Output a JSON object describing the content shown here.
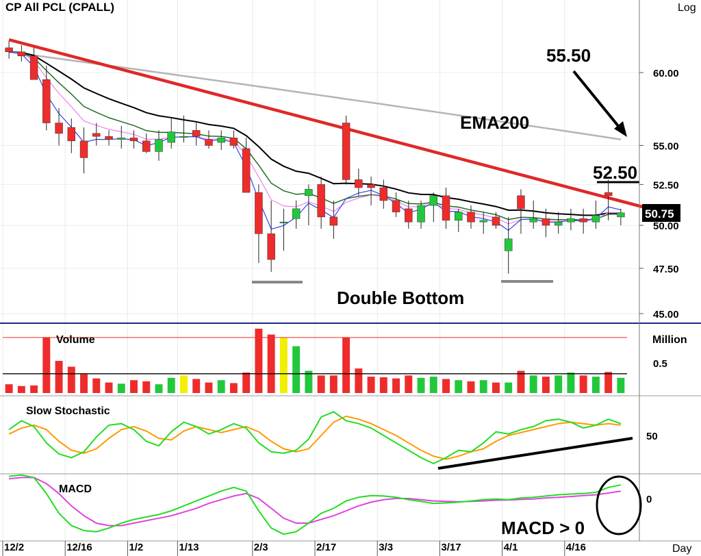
{
  "title": "CP  All  PCL  (CPALL)",
  "scale_label": "Log",
  "x_axis_label": "Day",
  "date_labels": [
    "12/2",
    "12/16",
    "1/2",
    "1/13",
    "2/3",
    "2/17",
    "3/3",
    "3/17",
    "4/1",
    "4/16"
  ],
  "annotations": {
    "target_high": "55.50",
    "ema_label": "EMA200",
    "resistance": "52.50",
    "last_price": "50.75",
    "pattern": "Double Bottom",
    "macd_note": "MACD > 0"
  },
  "colors": {
    "up": "#22c83c",
    "down": "#ee2c2c",
    "neutral": "#f0f000",
    "trendline": "#e02828",
    "ema200": "#b4b4b4",
    "ma_long": "#000000",
    "ma_mid": "#1f6b1f",
    "ma_short": "#ee82ee",
    "ma_fast": "#3344ee",
    "stoch_k": "#22dd22",
    "stoch_d": "#ff9900",
    "macd_line": "#22dd22",
    "macd_signal": "#dd44dd",
    "divider": "#1a2a8a"
  },
  "panels": {
    "price": {
      "ticks": [
        "60.00",
        "55.00",
        "52.50",
        "50.00",
        "47.50",
        "45.00"
      ]
    },
    "volume": {
      "title": "Volume",
      "unit": "Million",
      "ticks": [
        "0.5"
      ]
    },
    "stochastic": {
      "title": "Slow  Stochastic",
      "ticks": [
        "50"
      ]
    },
    "macd": {
      "title": "MACD",
      "ticks": [
        "0"
      ]
    }
  },
  "chart_data": {
    "type": "candlestick",
    "symbol": "CPALL",
    "scale": "log",
    "ylim": [
      44.5,
      63
    ],
    "x": [
      "12/2",
      "12/4",
      "12/6",
      "12/10",
      "12/12",
      "12/16",
      "12/18",
      "12/20",
      "12/24",
      "12/27",
      "1/2",
      "1/6",
      "1/8",
      "1/10",
      "1/13",
      "1/15",
      "1/20",
      "1/22",
      "1/24",
      "1/29",
      "2/3",
      "2/5",
      "2/7",
      "2/11",
      "2/13",
      "2/17",
      "2/19",
      "2/21",
      "2/25",
      "2/27",
      "3/3",
      "3/5",
      "3/7",
      "3/11",
      "3/13",
      "3/17",
      "3/19",
      "3/21",
      "3/25",
      "3/27",
      "4/1",
      "4/3",
      "4/7",
      "4/9",
      "4/11",
      "4/16",
      "4/18",
      "4/22",
      "4/24",
      "4/28"
    ],
    "open": [
      61.8,
      61.5,
      61.2,
      59.5,
      56.5,
      56.2,
      55.3,
      55.8,
      55.6,
      55.4,
      55.5,
      55.3,
      54.6,
      55.2,
      55.6,
      56.0,
      55.4,
      55.2,
      55.5,
      54.8,
      52.0,
      49.5,
      50.2,
      50.4,
      51.8,
      52.5,
      50.5,
      56.5,
      52.8,
      52.5,
      52.3,
      51.5,
      51.0,
      50.2,
      51.2,
      51.8,
      50.3,
      50.8,
      50.2,
      50.5,
      48.5,
      51.8,
      50.2,
      50.4,
      50.0,
      50.2,
      50.4,
      50.2,
      52.0,
      50.5
    ],
    "high": [
      62.3,
      62.0,
      61.8,
      60.5,
      57.5,
      56.8,
      56.2,
      56.5,
      56.0,
      56.3,
      56.0,
      55.8,
      56.0,
      56.8,
      57.0,
      56.6,
      56.0,
      56.0,
      56.0,
      55.5,
      52.5,
      51.5,
      51.0,
      51.5,
      52.5,
      53.0,
      51.5,
      57.0,
      53.5,
      53.0,
      52.8,
      52.0,
      51.5,
      51.5,
      52.0,
      52.3,
      51.0,
      51.2,
      50.8,
      50.8,
      50.5,
      52.2,
      51.5,
      51.0,
      50.8,
      51.0,
      51.0,
      51.5,
      52.8,
      51.0
    ],
    "low": [
      61.0,
      60.8,
      59.5,
      56.0,
      55.0,
      54.5,
      53.2,
      55.0,
      55.0,
      54.8,
      54.8,
      54.5,
      54.0,
      54.8,
      55.2,
      55.0,
      54.8,
      54.7,
      54.8,
      52.0,
      47.8,
      47.3,
      48.5,
      49.8,
      50.0,
      49.8,
      49.2,
      52.5,
      51.8,
      51.2,
      51.0,
      50.5,
      49.8,
      49.8,
      50.2,
      49.8,
      49.6,
      49.8,
      49.5,
      49.8,
      47.2,
      49.5,
      49.8,
      49.3,
      49.5,
      49.7,
      49.5,
      49.8,
      50.3,
      50.0
    ],
    "close": [
      61.5,
      61.2,
      59.5,
      56.5,
      55.8,
      55.3,
      54.2,
      55.6,
      55.4,
      55.5,
      55.3,
      54.6,
      55.4,
      55.9,
      55.6,
      55.6,
      55.0,
      55.5,
      55.0,
      52.0,
      49.5,
      48.0,
      50.2,
      51.0,
      52.2,
      50.5,
      50.0,
      52.8,
      52.3,
      52.3,
      51.5,
      50.8,
      50.2,
      51.2,
      51.8,
      50.3,
      50.8,
      50.2,
      50.3,
      50.0,
      49.2,
      51.0,
      50.4,
      50.0,
      50.2,
      50.4,
      50.2,
      50.6,
      51.8,
      50.75
    ],
    "volume_million": [
      0.15,
      0.12,
      0.13,
      0.95,
      0.55,
      0.45,
      0.32,
      0.25,
      0.18,
      0.16,
      0.22,
      0.2,
      0.15,
      0.26,
      0.3,
      0.24,
      0.18,
      0.22,
      0.17,
      0.35,
      1.1,
      1.0,
      0.95,
      0.8,
      0.38,
      0.3,
      0.3,
      0.95,
      0.42,
      0.28,
      0.27,
      0.25,
      0.3,
      0.26,
      0.28,
      0.24,
      0.22,
      0.2,
      0.22,
      0.18,
      0.18,
      0.38,
      0.3,
      0.28,
      0.3,
      0.35,
      0.3,
      0.28,
      0.36,
      0.26
    ],
    "volume_avg_million": 0.33,
    "volume_long_avg_million": 0.95,
    "stoch_k": [
      58,
      70,
      62,
      40,
      25,
      20,
      28,
      48,
      64,
      66,
      58,
      42,
      36,
      55,
      68,
      62,
      52,
      58,
      66,
      60,
      40,
      28,
      26,
      30,
      45,
      75,
      82,
      70,
      66,
      60,
      50,
      40,
      30,
      20,
      12,
      20,
      30,
      28,
      40,
      55,
      52,
      58,
      62,
      70,
      72,
      68,
      60,
      64,
      72,
      66
    ],
    "stoch_d": [
      52,
      60,
      64,
      58,
      42,
      30,
      26,
      32,
      46,
      58,
      62,
      56,
      46,
      44,
      56,
      62,
      58,
      54,
      58,
      62,
      55,
      42,
      32,
      28,
      32,
      50,
      68,
      76,
      72,
      66,
      58,
      50,
      40,
      30,
      22,
      18,
      22,
      28,
      32,
      42,
      50,
      54,
      58,
      62,
      66,
      68,
      66,
      64,
      66,
      64
    ],
    "macd": [
      0.9,
      0.95,
      0.85,
      0.2,
      -0.6,
      -1.1,
      -1.3,
      -1.35,
      -1.2,
      -1.0,
      -0.85,
      -0.75,
      -0.65,
      -0.5,
      -0.3,
      -0.1,
      0.1,
      0.3,
      0.45,
      0.3,
      -0.5,
      -1.2,
      -1.45,
      -1.35,
      -1.0,
      -0.6,
      -0.4,
      -0.1,
      0.05,
      0.12,
      0.1,
      0.05,
      -0.05,
      -0.12,
      -0.2,
      -0.18,
      -0.15,
      -0.1,
      -0.05,
      -0.02,
      -0.05,
      0.02,
      0.05,
      0.1,
      0.15,
      0.18,
      0.2,
      0.25,
      0.45,
      0.55
    ],
    "macd_signal": [
      0.8,
      0.85,
      0.85,
      0.6,
      0.2,
      -0.3,
      -0.7,
      -1.0,
      -1.1,
      -1.1,
      -1.0,
      -0.9,
      -0.8,
      -0.7,
      -0.55,
      -0.4,
      -0.2,
      -0.05,
      0.1,
      0.2,
      0.0,
      -0.4,
      -0.8,
      -1.0,
      -1.0,
      -0.85,
      -0.7,
      -0.5,
      -0.3,
      -0.15,
      -0.05,
      0.0,
      0.0,
      -0.05,
      -0.1,
      -0.12,
      -0.13,
      -0.12,
      -0.1,
      -0.07,
      -0.06,
      -0.04,
      -0.02,
      0.02,
      0.05,
      0.08,
      0.12,
      0.15,
      0.22,
      0.3
    ]
  }
}
